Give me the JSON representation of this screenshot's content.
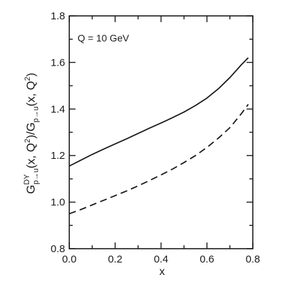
{
  "chart_data": {
    "type": "line",
    "title": "",
    "annotation": "Q = 10 GeV",
    "xlabel": "x",
    "ylabel": {
      "main": "G",
      "sup1": "DY",
      "sub1": "p→u",
      "mid": "(x, Q",
      "sq": "2",
      "mid2": ")/G",
      "sub2": "p→u",
      "end": "(x, Q",
      "sq2": "2",
      "tail": ")"
    },
    "xlim": [
      0.0,
      0.8
    ],
    "ylim": [
      0.8,
      1.8
    ],
    "xticks": [
      0.0,
      0.2,
      0.4,
      0.6,
      0.8
    ],
    "xtick_labels": [
      "0.0",
      "0.2",
      "0.4",
      "0.6",
      "0.8"
    ],
    "yticks": [
      0.8,
      1.0,
      1.2,
      1.4,
      1.6,
      1.8
    ],
    "ytick_labels": [
      "0.8",
      "1.0",
      "1.2",
      "1.4",
      "1.6",
      "1.8"
    ],
    "grid": false,
    "series": [
      {
        "style": "solid",
        "color": "#1a1a1a",
        "x": [
          0.0,
          0.05,
          0.1,
          0.15,
          0.2,
          0.25,
          0.3,
          0.35,
          0.4,
          0.45,
          0.5,
          0.55,
          0.6,
          0.65,
          0.7,
          0.75,
          0.78
        ],
        "y": [
          1.155,
          1.18,
          1.205,
          1.228,
          1.25,
          1.272,
          1.295,
          1.318,
          1.34,
          1.363,
          1.387,
          1.415,
          1.447,
          1.487,
          1.535,
          1.59,
          1.62
        ]
      },
      {
        "style": "dashed",
        "color": "#1a1a1a",
        "x": [
          0.0,
          0.05,
          0.1,
          0.15,
          0.2,
          0.25,
          0.3,
          0.35,
          0.4,
          0.45,
          0.5,
          0.55,
          0.6,
          0.65,
          0.7,
          0.75,
          0.78
        ],
        "y": [
          0.95,
          0.968,
          0.988,
          1.008,
          1.028,
          1.048,
          1.07,
          1.093,
          1.117,
          1.142,
          1.17,
          1.2,
          1.235,
          1.275,
          1.32,
          1.38,
          1.42
        ]
      }
    ]
  }
}
